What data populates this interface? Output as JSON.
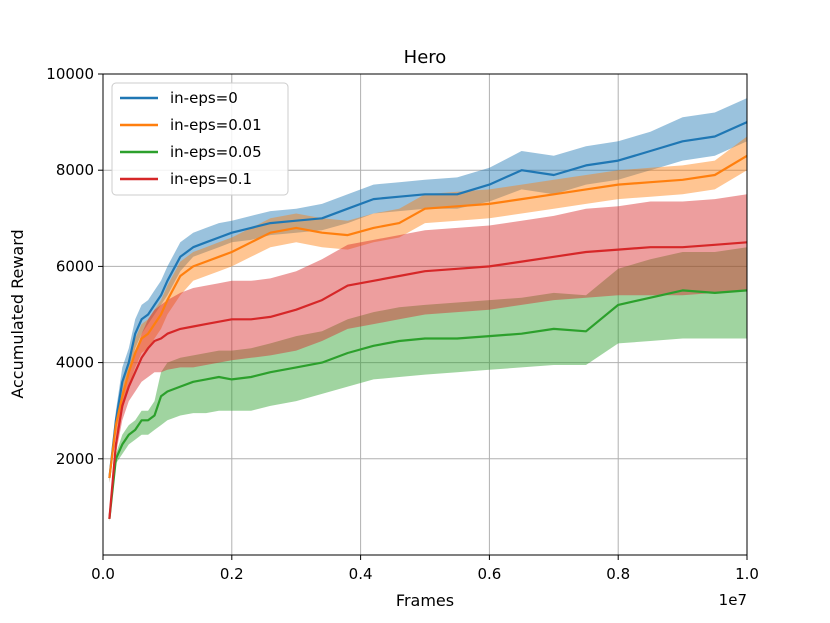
{
  "chart_data": {
    "type": "line",
    "title": "Hero",
    "xlabel": "Frames",
    "ylabel": "Accumulated Reward",
    "x_multiplier_label": "1e7",
    "xlim": [
      0.0,
      1.0
    ],
    "ylim": [
      0,
      10000
    ],
    "x_ticks": [
      "0.0",
      "0.2",
      "0.4",
      "0.6",
      "0.8",
      "1.0"
    ],
    "y_ticks": [
      "2000",
      "4000",
      "6000",
      "8000",
      "10000"
    ],
    "x_tick_values": [
      0.0,
      0.2,
      0.4,
      0.6,
      0.8,
      1.0
    ],
    "y_tick_values": [
      2000,
      4000,
      6000,
      8000,
      10000
    ],
    "grid": true,
    "legend_position": "top-left",
    "x": [
      0.01,
      0.02,
      0.03,
      0.04,
      0.05,
      0.06,
      0.07,
      0.08,
      0.09,
      0.1,
      0.12,
      0.14,
      0.16,
      0.18,
      0.2,
      0.23,
      0.26,
      0.3,
      0.34,
      0.38,
      0.42,
      0.46,
      0.5,
      0.55,
      0.6,
      0.65,
      0.7,
      0.75,
      0.8,
      0.85,
      0.9,
      0.95,
      1.0
    ],
    "series": [
      {
        "name": "in-eps=0",
        "color": "#1f77b4",
        "values": [
          1600,
          2800,
          3600,
          4000,
          4600,
          4900,
          5000,
          5200,
          5400,
          5700,
          6200,
          6400,
          6500,
          6600,
          6700,
          6800,
          6900,
          6950,
          7000,
          7200,
          7400,
          7450,
          7500,
          7500,
          7700,
          8000,
          7900,
          8100,
          8200,
          8400,
          8600,
          8700,
          9000
        ],
        "lower": [
          1500,
          2600,
          3300,
          3700,
          4300,
          4600,
          4800,
          5000,
          5200,
          5400,
          5900,
          6200,
          6300,
          6400,
          6500,
          6550,
          6650,
          6700,
          6750,
          6900,
          7100,
          7150,
          7200,
          7200,
          7350,
          7600,
          7500,
          7700,
          7800,
          8000,
          8200,
          8300,
          8600
        ],
        "upper": [
          1700,
          3000,
          3900,
          4300,
          4900,
          5200,
          5300,
          5500,
          5700,
          6000,
          6500,
          6700,
          6800,
          6900,
          6950,
          7050,
          7150,
          7200,
          7300,
          7500,
          7700,
          7750,
          7800,
          7850,
          8050,
          8400,
          8300,
          8500,
          8600,
          8800,
          9100,
          9200,
          9500
        ]
      },
      {
        "name": "in-eps=0.01",
        "color": "#ff7f0e",
        "values": [
          1600,
          2700,
          3300,
          3800,
          4200,
          4500,
          4600,
          4800,
          5000,
          5300,
          5800,
          6000,
          6100,
          6200,
          6300,
          6500,
          6700,
          6800,
          6700,
          6650,
          6800,
          6900,
          7200,
          7250,
          7300,
          7400,
          7500,
          7600,
          7700,
          7750,
          7800,
          7900,
          8300
        ],
        "lower": [
          1500,
          2500,
          3000,
          3500,
          3900,
          4200,
          4300,
          4500,
          4700,
          5000,
          5400,
          5700,
          5800,
          5900,
          6000,
          6200,
          6400,
          6500,
          6400,
          6350,
          6500,
          6600,
          6900,
          6950,
          7000,
          7100,
          7200,
          7300,
          7400,
          7450,
          7500,
          7600,
          8000
        ],
        "upper": [
          1700,
          2900,
          3600,
          4100,
          4500,
          4800,
          4900,
          5100,
          5300,
          5600,
          6100,
          6300,
          6400,
          6500,
          6600,
          6800,
          7000,
          7100,
          7000,
          6950,
          7100,
          7200,
          7500,
          7550,
          7600,
          7700,
          7800,
          7900,
          8000,
          8050,
          8100,
          8200,
          8700
        ]
      },
      {
        "name": "in-eps=0.05",
        "color": "#2ca02c",
        "values": [
          750,
          2000,
          2300,
          2500,
          2600,
          2800,
          2800,
          2900,
          3300,
          3400,
          3500,
          3600,
          3650,
          3700,
          3650,
          3700,
          3800,
          3900,
          4000,
          4200,
          4350,
          4450,
          4500,
          4500,
          4550,
          4600,
          4700,
          4650,
          5200,
          5350,
          5500,
          5450,
          5500
        ],
        "lower": [
          700,
          1900,
          2100,
          2300,
          2400,
          2500,
          2500,
          2600,
          2700,
          2800,
          2900,
          2950,
          2950,
          3000,
          3000,
          3000,
          3100,
          3200,
          3350,
          3500,
          3650,
          3700,
          3750,
          3800,
          3850,
          3900,
          3950,
          3950,
          4400,
          4450,
          4500,
          4500,
          4500
        ],
        "upper": [
          800,
          2100,
          2500,
          2700,
          2800,
          3000,
          3000,
          3200,
          3800,
          4000,
          4100,
          4150,
          4200,
          4250,
          4250,
          4300,
          4400,
          4550,
          4650,
          4900,
          5050,
          5150,
          5200,
          5250,
          5300,
          5350,
          5450,
          5400,
          5950,
          6150,
          6300,
          6300,
          6400
        ]
      },
      {
        "name": "in-eps=0.1",
        "color": "#d62728",
        "values": [
          750,
          2300,
          3100,
          3500,
          3800,
          4100,
          4300,
          4450,
          4500,
          4600,
          4700,
          4750,
          4800,
          4850,
          4900,
          4900,
          4950,
          5100,
          5300,
          5600,
          5700,
          5800,
          5900,
          5950,
          6000,
          6100,
          6200,
          6300,
          6350,
          6400,
          6400,
          6450,
          6500
        ],
        "lower": [
          700,
          2100,
          2800,
          3200,
          3400,
          3600,
          3700,
          3800,
          3800,
          3850,
          3900,
          3900,
          3950,
          4000,
          4050,
          4100,
          4150,
          4250,
          4450,
          4700,
          4800,
          4900,
          5000,
          5050,
          5100,
          5200,
          5300,
          5350,
          5400,
          5400,
          5400,
          5450,
          5500
        ],
        "upper": [
          800,
          2500,
          3400,
          3800,
          4200,
          4600,
          4900,
          5100,
          5200,
          5300,
          5450,
          5550,
          5600,
          5650,
          5700,
          5700,
          5750,
          5900,
          6150,
          6450,
          6550,
          6650,
          6750,
          6800,
          6850,
          6950,
          7050,
          7200,
          7250,
          7350,
          7350,
          7400,
          7500
        ]
      }
    ]
  }
}
